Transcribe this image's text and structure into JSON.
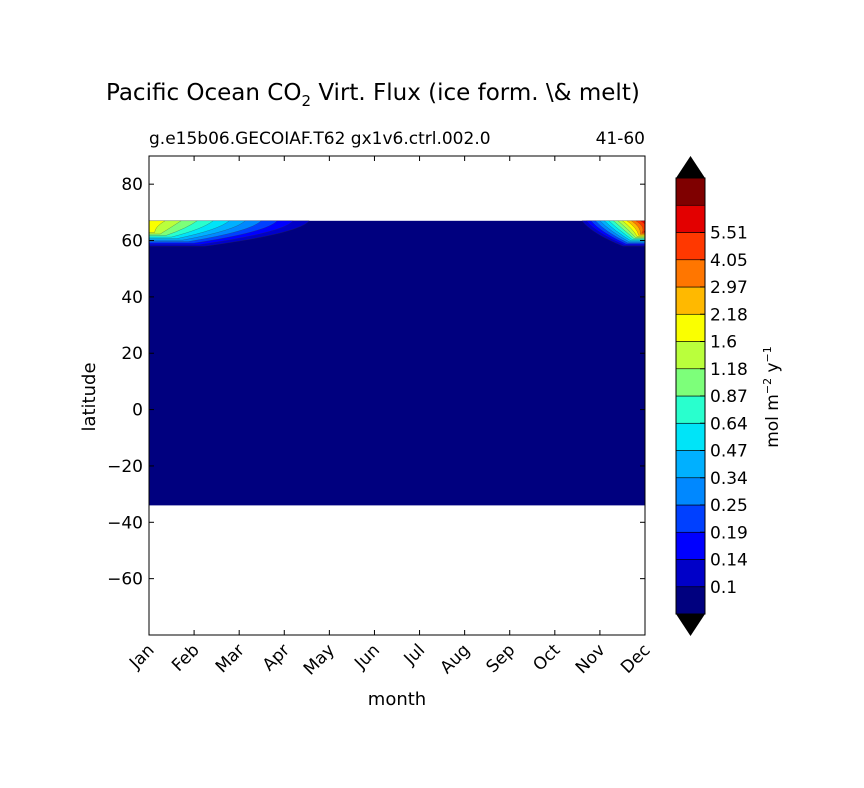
{
  "chart_data": {
    "type": "heatmap",
    "title": "Pacific Ocean CO",
    "title_sub": "2",
    "title_rest": " Virt. Flux (ice form. \\& melt)",
    "subtitle_left": "g.e15b06.GECOIAF.T62 gx1v6.ctrl.002.0",
    "subtitle_right": "41-60",
    "xlabel": "month",
    "ylabel": "latitude",
    "x_categories": [
      "Jan",
      "Feb",
      "Mar",
      "Apr",
      "May",
      "Jun",
      "Jul",
      "Aug",
      "Sep",
      "Oct",
      "Nov",
      "Dec"
    ],
    "ylim": [
      -80,
      90
    ],
    "yticks": [
      80,
      60,
      40,
      20,
      0,
      -20,
      -40,
      -60
    ],
    "ytick_labels": [
      "80",
      "60",
      "40",
      "20",
      "0",
      "−20",
      "−40",
      "−60"
    ],
    "data_lat_range": [
      -34,
      67
    ],
    "colorbar": {
      "label_main": "mol m",
      "label_exp1": "−2",
      "label_mid": " y",
      "label_exp2": "−1",
      "levels": [
        "0.1",
        "0.14",
        "0.19",
        "0.25",
        "0.34",
        "0.47",
        "0.64",
        "0.87",
        "1.18",
        "1.6",
        "2.18",
        "2.97",
        "4.05",
        "5.51"
      ],
      "colors": [
        "#00007f",
        "#0000c8",
        "#0000ff",
        "#0040ff",
        "#0088ff",
        "#00b0ff",
        "#00e4f8",
        "#29ffce",
        "#7dff7a",
        "#baff3c",
        "#faff00",
        "#ffb900",
        "#ff7600",
        "#ff3800",
        "#e30000",
        "#7f0000"
      ],
      "extend_low": "#000000",
      "extend_high": "#000000"
    },
    "hotspots": [
      {
        "months": [
          "Jan",
          "Feb",
          "Mar",
          "Apr"
        ],
        "lat_range": [
          58,
          67
        ],
        "max_level": "1.6"
      },
      {
        "months": [
          "Nov",
          "Dec"
        ],
        "lat_range": [
          58,
          67
        ],
        "max_level": "5.51"
      }
    ]
  }
}
